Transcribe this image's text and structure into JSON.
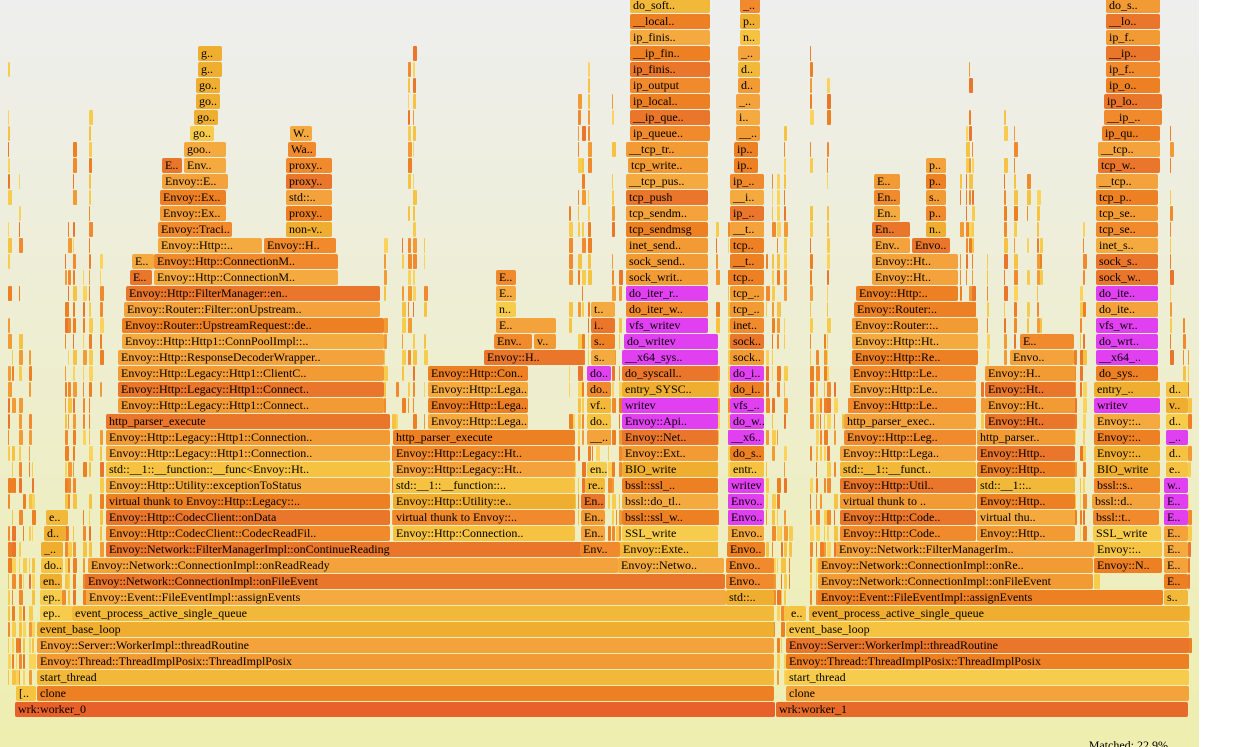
{
  "status": {
    "matched": "Matched: 22.9%"
  },
  "colors": {
    "search_match": "#e040f0",
    "background_top": "#eeeeee",
    "background_bottom": "#eeeeb0"
  },
  "frames": [
    {
      "label": "wrk:worker_0"
    },
    {
      "label": "wrk:worker_1"
    },
    {
      "label": "clone"
    },
    {
      "label": "clone"
    },
    {
      "label": "[.."
    },
    {
      "label": "start_thread"
    },
    {
      "label": "start_thread"
    },
    {
      "label": "Envoy::Thread::ThreadImplPosix::ThreadImplPosix"
    },
    {
      "label": "Envoy::Thread::ThreadImplPosix::ThreadImplPosix"
    },
    {
      "label": "Envoy::Server::WorkerImpl::threadRoutine"
    },
    {
      "label": "Envoy::Server::WorkerImpl::threadRoutine"
    },
    {
      "label": "event_base_loop"
    },
    {
      "label": "event_base_loop"
    },
    {
      "label": "event_process_active_single_queue"
    },
    {
      "label": "ep.."
    },
    {
      "label": "event_process_active_single_queue"
    },
    {
      "label": "e.."
    },
    {
      "label": "Envoy::Event::FileEventImpl::assignEvents"
    },
    {
      "label": "ep.."
    },
    {
      "label": "std::.."
    },
    {
      "label": "Envoy::Event::FileEventImpl::assignEvents"
    },
    {
      "label": "s.."
    },
    {
      "label": "Envoy::Network::ConnectionImpl::onFileEvent"
    },
    {
      "label": "en.."
    },
    {
      "label": "Envo.."
    },
    {
      "label": "Envoy::Network::ConnectionImpl::onFileEvent"
    },
    {
      "label": "E.."
    },
    {
      "label": "Envoy::Network::ConnectionImpl::onReadReady"
    },
    {
      "label": "do.."
    },
    {
      "label": "Envoy::Netwo.."
    },
    {
      "label": "Envo.."
    },
    {
      "label": "Envoy::Network::ConnectionImpl::onRe.."
    },
    {
      "label": "Envoy::N.."
    },
    {
      "label": "E.."
    },
    {
      "label": "Envoy::Network::FilterManagerImpl::onContinueReading"
    },
    {
      "label": "_.."
    },
    {
      "label": "Env.."
    },
    {
      "label": "Envoy::Exte.."
    },
    {
      "label": "Envo.."
    },
    {
      "label": "Envoy::Network::FilterManagerIm.."
    },
    {
      "label": "Envoy::.."
    },
    {
      "label": "E.."
    },
    {
      "label": "Envoy::Http::CodecClient::CodecReadFil.."
    },
    {
      "label": "d.."
    },
    {
      "label": "Envoy::Http::Connection.."
    },
    {
      "label": "En.."
    },
    {
      "label": "SSL_write"
    },
    {
      "label": "Envo.."
    },
    {
      "label": "Envoy::Http::Code.."
    },
    {
      "label": "Envoy::Http.."
    },
    {
      "label": "SSL_write"
    },
    {
      "label": "E.."
    },
    {
      "label": "Envoy::Http::CodecClient::onData"
    },
    {
      "label": "e.."
    },
    {
      "label": "virtual thunk to Envoy::.."
    },
    {
      "label": "En.."
    },
    {
      "label": "bssl::ssl_w.."
    },
    {
      "label": "Envo.."
    },
    {
      "label": "Envoy::Http::Code.."
    },
    {
      "label": "virtual thu.."
    },
    {
      "label": "bssl::t.."
    },
    {
      "label": "E.."
    },
    {
      "label": "virtual thunk to Envoy::Http::Legacy::.."
    },
    {
      "label": "Envoy::Http::Utility::e.."
    },
    {
      "label": "En.."
    },
    {
      "label": "bssl::do_tl.."
    },
    {
      "label": "Envo.."
    },
    {
      "label": "virtual thunk to .."
    },
    {
      "label": "Envoy::Http.."
    },
    {
      "label": "bssl::d.."
    },
    {
      "label": "E.."
    },
    {
      "label": "Envoy::Http::Utility::exceptionToStatus"
    },
    {
      "label": "std::__1::__function::.."
    },
    {
      "label": "re.."
    },
    {
      "label": "bssl::ssl_.."
    },
    {
      "label": "writev"
    },
    {
      "label": "Envoy::Http::Util.."
    },
    {
      "label": "std::__1::.."
    },
    {
      "label": "bssl::s.."
    },
    {
      "label": "w.."
    },
    {
      "label": "std::__1::__function::__func<Envoy::Ht.."
    },
    {
      "label": "Envoy::Http::Legacy::Ht.."
    },
    {
      "label": "en.."
    },
    {
      "label": "BIO_write"
    },
    {
      "label": "entr.."
    },
    {
      "label": "std::__1::__funct.."
    },
    {
      "label": "Envoy::Http.."
    },
    {
      "label": "BIO_write"
    },
    {
      "label": "e.."
    },
    {
      "label": "Envoy::Http::Legacy::Http1::Connection.."
    },
    {
      "label": "Envoy::Http::Legacy::Ht.."
    },
    {
      "label": "Envoy::Ext.."
    },
    {
      "label": "do_s.."
    },
    {
      "label": "Envoy::Http::Lega.."
    },
    {
      "label": "Envoy::Http.."
    },
    {
      "label": "Envoy::.."
    },
    {
      "label": "d.."
    },
    {
      "label": "Envoy::Http::Legacy::Http1::Connection.."
    },
    {
      "label": "http_parser_execute"
    },
    {
      "label": "__.."
    },
    {
      "label": "Envoy::Net.."
    },
    {
      "label": "__x6.."
    },
    {
      "label": "Envoy::Http::Leg.."
    },
    {
      "label": "http_parser.."
    },
    {
      "label": "Envoy::.."
    },
    {
      "label": "_.."
    },
    {
      "label": "http_parser_execute"
    },
    {
      "label": "Envoy::Http::Lega.."
    },
    {
      "label": "do.."
    },
    {
      "label": "Envoy::Api.."
    },
    {
      "label": "do_w.."
    },
    {
      "label": "http_parser_exec.."
    },
    {
      "label": "Envoy::Ht.."
    },
    {
      "label": "Envoy::.."
    },
    {
      "label": "d.."
    },
    {
      "label": "Envoy::Http::Legacy::Http1::Connect.."
    },
    {
      "label": "Envoy::Http::Lega.."
    },
    {
      "label": "vf.."
    },
    {
      "label": "writev"
    },
    {
      "label": "vfs_.."
    },
    {
      "label": "Envoy::Http::Le.."
    },
    {
      "label": "Envoy::Ht.."
    },
    {
      "label": "writev"
    },
    {
      "label": "v.."
    },
    {
      "label": "Envoy::Http::Legacy::Http1::Connect.."
    },
    {
      "label": "Envoy::Http::Lega.."
    },
    {
      "label": "do.."
    },
    {
      "label": "entry_SYSC.."
    },
    {
      "label": "do_i.."
    },
    {
      "label": "Envoy::Http::Le.."
    },
    {
      "label": "Envoy::Ht.."
    },
    {
      "label": "entry_.."
    },
    {
      "label": "d.."
    },
    {
      "label": "Envoy::Http::Legacy::Http1::ClientC.."
    },
    {
      "label": "Envoy::Http::Con.."
    },
    {
      "label": "do.."
    },
    {
      "label": "do_syscall.."
    },
    {
      "label": "do_i.."
    },
    {
      "label": "Envoy::Http::Le.."
    },
    {
      "label": "Envoy::H.."
    },
    {
      "label": "do_sys.."
    },
    {
      "label": "Envoy::Http::ResponseDecoderWrapper.."
    },
    {
      "label": "Envoy::H.."
    },
    {
      "label": "s.."
    },
    {
      "label": "__x64_sys.."
    },
    {
      "label": "sock.."
    },
    {
      "label": "Envoy::Http::Re.."
    },
    {
      "label": "Envo.."
    },
    {
      "label": "__x64_.."
    },
    {
      "label": "Envoy::Http::Http1::ConnPoolImpl::.."
    },
    {
      "label": "Env.."
    },
    {
      "label": "v.."
    },
    {
      "label": "s.."
    },
    {
      "label": "do_writev"
    },
    {
      "label": "sock.."
    },
    {
      "label": "Envoy::Http::Ht.."
    },
    {
      "label": "E.."
    },
    {
      "label": "do_wrt.."
    },
    {
      "label": "Envoy::Router::UpstreamRequest::de.."
    },
    {
      "label": "E.."
    },
    {
      "label": "i.."
    },
    {
      "label": "vfs_writev"
    },
    {
      "label": "inet.."
    },
    {
      "label": "Envoy::Router::.."
    },
    {
      "label": "vfs_wr.."
    },
    {
      "label": "Envoy::Router::Filter::onUpstream.."
    },
    {
      "label": "n.."
    },
    {
      "label": "t.."
    },
    {
      "label": "do_iter_w.."
    },
    {
      "label": "tcp_.."
    },
    {
      "label": "Envoy::Router:.."
    },
    {
      "label": "do_ite.."
    },
    {
      "label": "Envoy::Http::FilterManager::en.."
    },
    {
      "label": "E.."
    },
    {
      "label": "do_iter_r.."
    },
    {
      "label": "tcp_.."
    },
    {
      "label": "Envoy::Http:.."
    },
    {
      "label": "do_ite.."
    },
    {
      "label": "E.."
    },
    {
      "label": "Envoy::Http::ConnectionM.."
    },
    {
      "label": "E.."
    },
    {
      "label": "sock_writ.."
    },
    {
      "label": "tcp.."
    },
    {
      "label": "Envoy::Ht.."
    },
    {
      "label": "sock_w.."
    },
    {
      "label": "E.."
    },
    {
      "label": "Envoy::Http::ConnectionM.."
    },
    {
      "label": "sock_send.."
    },
    {
      "label": "__t.."
    },
    {
      "label": "Envoy::Ht.."
    },
    {
      "label": "sock_s.."
    },
    {
      "label": "Envoy::Http::.."
    },
    {
      "label": "Envoy::H.."
    },
    {
      "label": "inet_send.."
    },
    {
      "label": "tcp.."
    },
    {
      "label": "Env.."
    },
    {
      "label": "Envo.."
    },
    {
      "label": "inet_s.."
    },
    {
      "label": "Envoy::Traci.."
    },
    {
      "label": "non-v.."
    },
    {
      "label": "tcp_sendmsg"
    },
    {
      "label": "__t.."
    },
    {
      "label": "En.."
    },
    {
      "label": "n.."
    },
    {
      "label": "tcp_se.."
    },
    {
      "label": "Envoy::Ex.."
    },
    {
      "label": "proxy.."
    },
    {
      "label": "tcp_sendm.."
    },
    {
      "label": "ip_.."
    },
    {
      "label": "En.."
    },
    {
      "label": "p.."
    },
    {
      "label": "tcp_se.."
    },
    {
      "label": "Envoy::Ex.."
    },
    {
      "label": "std::.."
    },
    {
      "label": "tcp_push"
    },
    {
      "label": "__i.."
    },
    {
      "label": "En.."
    },
    {
      "label": "s.."
    },
    {
      "label": "tcp_p.."
    },
    {
      "label": "Envoy::E.."
    },
    {
      "label": "proxy.."
    },
    {
      "label": "__tcp_pus.."
    },
    {
      "label": "ip_.."
    },
    {
      "label": "E.."
    },
    {
      "label": "p.."
    },
    {
      "label": "__tcp.."
    },
    {
      "label": "E.."
    },
    {
      "label": "Env.."
    },
    {
      "label": "proxy.."
    },
    {
      "label": "tcp_write.."
    },
    {
      "label": "ip.."
    },
    {
      "label": "p.."
    },
    {
      "label": "tcp_w.."
    },
    {
      "label": "goo.."
    },
    {
      "label": "Wa.."
    },
    {
      "label": "__tcp_tr.."
    },
    {
      "label": "ip.."
    },
    {
      "label": "__tcp.."
    },
    {
      "label": "go.."
    },
    {
      "label": "W.."
    },
    {
      "label": "ip_queue.."
    },
    {
      "label": "__.."
    },
    {
      "label": "ip_qu.."
    },
    {
      "label": "go.."
    },
    {
      "label": "__ip_que.."
    },
    {
      "label": "i.."
    },
    {
      "label": "__ip_.."
    },
    {
      "label": "go.."
    },
    {
      "label": "ip_local.."
    },
    {
      "label": "_.."
    },
    {
      "label": "ip_lo.."
    },
    {
      "label": "go.."
    },
    {
      "label": "ip_output"
    },
    {
      "label": "d.."
    },
    {
      "label": "ip_o.."
    },
    {
      "label": "g.."
    },
    {
      "label": "ip_finis.."
    },
    {
      "label": "d.."
    },
    {
      "label": "ip_f.."
    },
    {
      "label": "g.."
    },
    {
      "label": "__ip_fin.."
    },
    {
      "label": "_.."
    },
    {
      "label": "__ip.."
    },
    {
      "label": "ip_finis.."
    },
    {
      "label": "n.."
    },
    {
      "label": "ip_f.."
    },
    {
      "label": "__local.."
    },
    {
      "label": "p.."
    },
    {
      "label": "__lo.."
    },
    {
      "label": "do_soft.."
    },
    {
      "label": "_.."
    },
    {
      "label": "do_s.."
    }
  ]
}
